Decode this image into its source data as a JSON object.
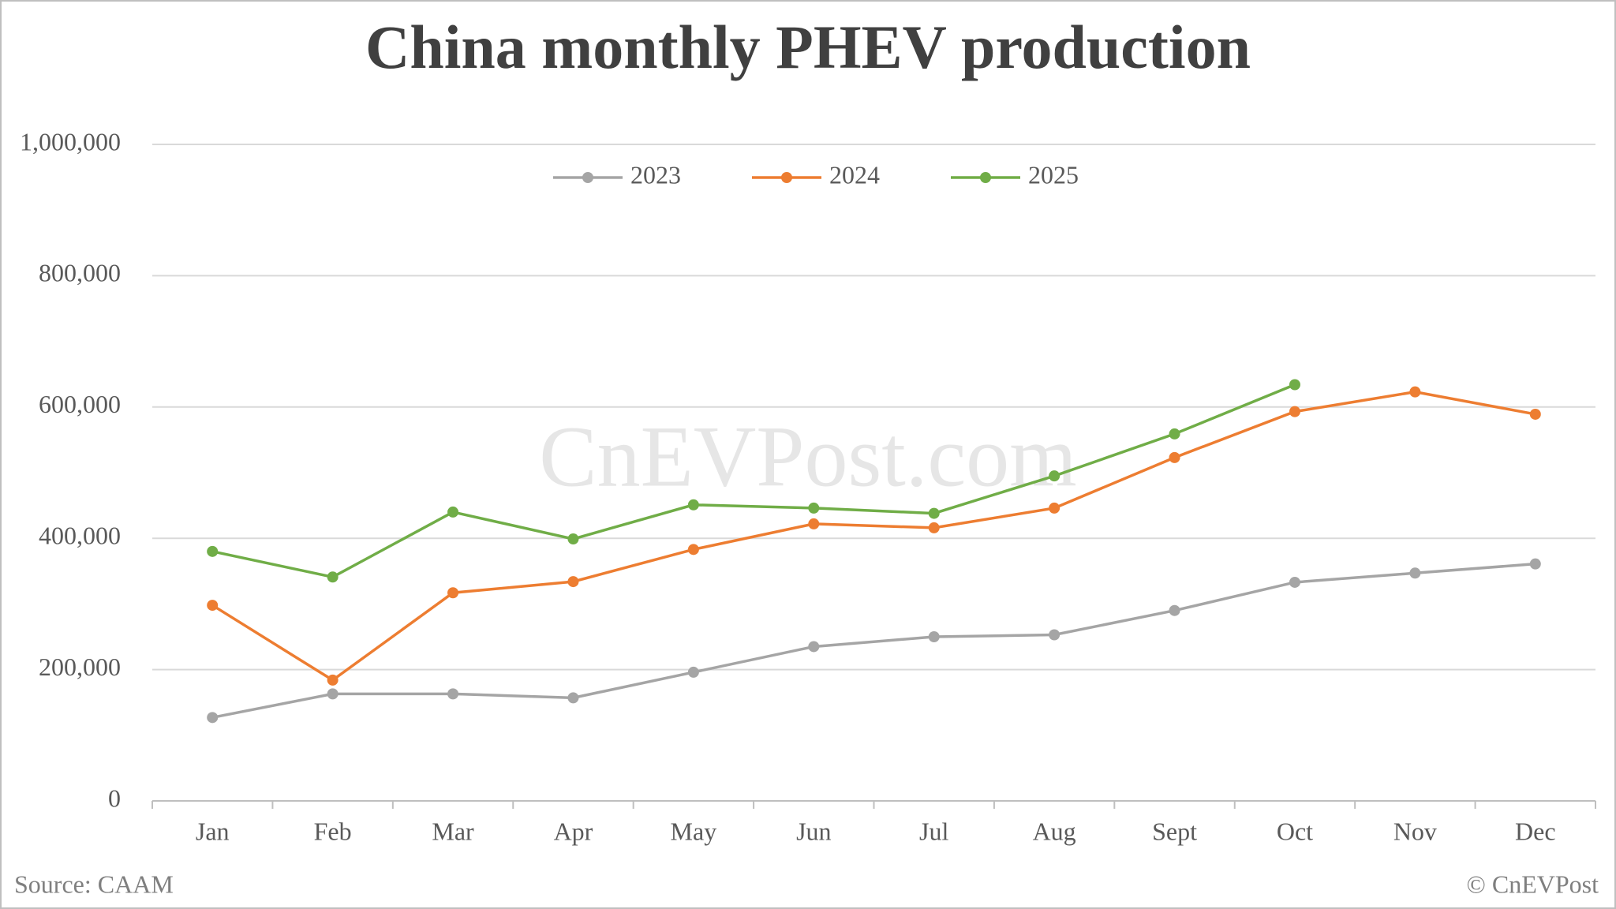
{
  "chart_data": {
    "type": "line",
    "title": "China monthly PHEV production",
    "categories": [
      "Jan",
      "Feb",
      "Mar",
      "Apr",
      "May",
      "Jun",
      "Jul",
      "Aug",
      "Sept",
      "Oct",
      "Nov",
      "Dec"
    ],
    "series": [
      {
        "name": "2023",
        "color": "#a5a5a5",
        "values": [
          127000,
          163000,
          163000,
          157000,
          196000,
          235000,
          250000,
          253000,
          290000,
          333000,
          347000,
          361000
        ]
      },
      {
        "name": "2024",
        "color": "#ed7d31",
        "values": [
          298000,
          184000,
          317000,
          334000,
          383000,
          422000,
          416000,
          446000,
          523000,
          593000,
          623000,
          589000
        ]
      },
      {
        "name": "2025",
        "color": "#70ad47",
        "values": [
          380000,
          341000,
          440000,
          399000,
          451000,
          446000,
          438000,
          495000,
          559000,
          634000,
          null,
          null
        ]
      }
    ],
    "ylim": [
      0,
      1000000
    ],
    "yticks": [
      0,
      {
        "value": 200000,
        "label": "200,000"
      },
      {
        "value": 400000,
        "label": "400,000"
      },
      {
        "value": 600000,
        "label": "600,000"
      },
      {
        "value": 800000,
        "label": "800,000"
      },
      {
        "value": 1000000,
        "label": "1,000,000"
      }
    ],
    "grid": true,
    "legend": "top",
    "watermark": "CnEVPost.com",
    "source": "Source: CAAM",
    "credit": "© CnEVPost"
  }
}
